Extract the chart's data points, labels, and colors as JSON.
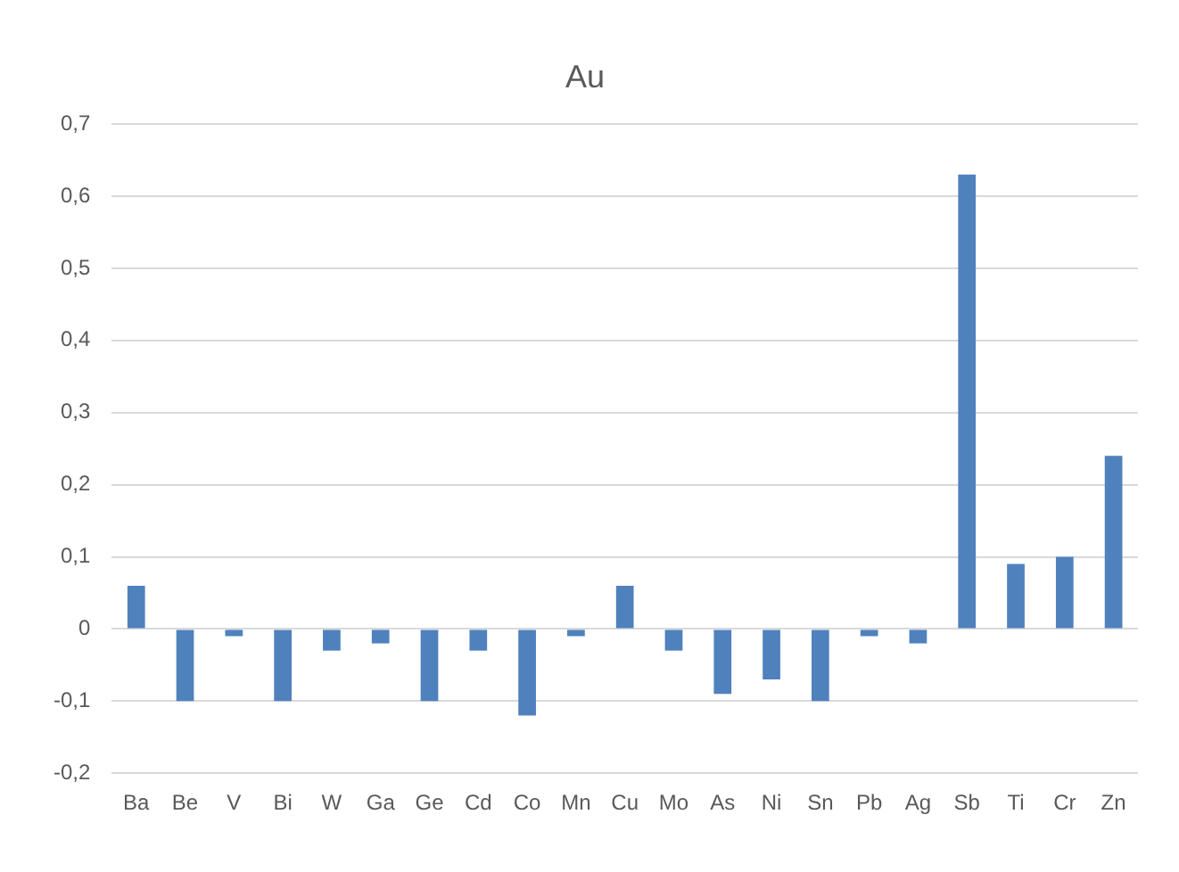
{
  "chart_data": {
    "type": "bar",
    "title": "Au",
    "categories": [
      "Ba",
      "Be",
      "V",
      "Bi",
      "W",
      "Ga",
      "Ge",
      "Cd",
      "Co",
      "Mn",
      "Cu",
      "Mo",
      "As",
      "Ni",
      "Sn",
      "Pb",
      "Ag",
      "Sb",
      "Ti",
      "Cr",
      "Zn"
    ],
    "values": [
      0.06,
      -0.1,
      -0.01,
      -0.1,
      -0.03,
      -0.02,
      -0.1,
      -0.03,
      -0.12,
      -0.01,
      0.06,
      -0.03,
      -0.09,
      -0.07,
      -0.1,
      -0.01,
      -0.02,
      0.63,
      0.09,
      0.1,
      0.24
    ],
    "color": "#4f81bd",
    "ylim": [
      -0.2,
      0.7
    ],
    "yticks": [
      {
        "value": -0.2,
        "label": "-0,2"
      },
      {
        "value": -0.1,
        "label": "-0,1"
      },
      {
        "value": 0,
        "label": "0"
      },
      {
        "value": 0.1,
        "label": "0,1"
      },
      {
        "value": 0.2,
        "label": "0,2"
      },
      {
        "value": 0.3,
        "label": "0,3"
      },
      {
        "value": 0.4,
        "label": "0,4"
      },
      {
        "value": 0.5,
        "label": "0,5"
      },
      {
        "value": 0.6,
        "label": "0,6"
      },
      {
        "value": 0.7,
        "label": "0,7"
      }
    ],
    "grid": "y",
    "legend": false
  }
}
